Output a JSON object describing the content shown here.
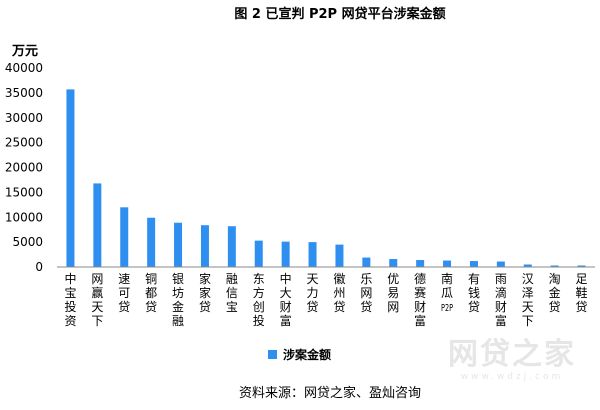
{
  "chart_data": {
    "type": "bar",
    "title": "图 2 已宣判 P2P 网贷平台涉案金额",
    "ylabel": "万元",
    "xlabel": "",
    "ylim": [
      0,
      40000
    ],
    "yticks": [
      0,
      5000,
      10000,
      15000,
      20000,
      25000,
      30000,
      35000,
      40000
    ],
    "grid": false,
    "legend_position": "bottom",
    "series": [
      {
        "name": "涉案金额",
        "color": "#2f8ff0",
        "values": [
          35700,
          16800,
          12000,
          9900,
          8900,
          8400,
          8200,
          5300,
          5100,
          5000,
          4500,
          1900,
          1600,
          1400,
          1300,
          1200,
          1100,
          500,
          300,
          300
        ]
      }
    ],
    "categories": [
      "中宝投资",
      "网赢天下",
      "速可贷",
      "铜都贷",
      "银坊金融",
      "家家贷",
      "融信宝",
      "东方创投",
      "中大财富",
      "天力贷",
      "徽州贷",
      "乐网贷",
      "优易网",
      "德赛财富",
      "南瓜P2P",
      "有钱贷",
      "雨滴财富",
      "汉泽天下",
      "淘金贷",
      "足鞋贷"
    ]
  },
  "source": "资料来源：网贷之家、盈灿咨询",
  "watermark": {
    "main": "网贷之家",
    "sub": "www.wdzj.com"
  }
}
